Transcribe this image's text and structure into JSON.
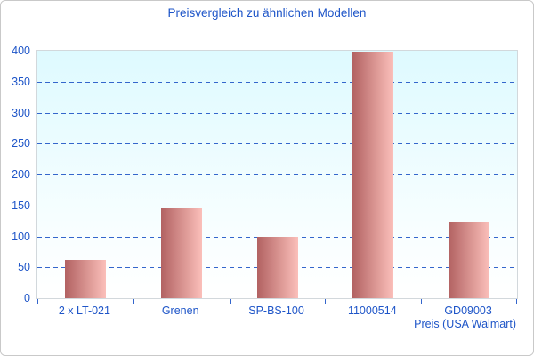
{
  "title": "Preisvergleich zu ähnlichen Modellen",
  "colors": {
    "text_blue": "#1e55c8",
    "grid_blue": "#3466cc",
    "bar_dark": "#b26262",
    "bar_light": "#fbbfba",
    "plot_bg_top": "#defaff",
    "plot_border": "#d2d8dc",
    "outer_border": "#c9c9c9"
  },
  "chart_data": {
    "type": "bar",
    "title": "Preisvergleich zu ähnlichen Modellen",
    "categories": [
      "2 x LT-021",
      "Grenen",
      "SP-BS-100",
      "11000514",
      "GD09003"
    ],
    "values": [
      62,
      146,
      100,
      399,
      124
    ],
    "xlabel": "Preis (USA Walmart)",
    "ylabel": "",
    "ylim": [
      0,
      400
    ],
    "yticks": [
      0,
      50,
      100,
      150,
      200,
      250,
      300,
      350,
      400
    ],
    "grid": "horizontal-dashed",
    "legend": "none",
    "bar_gradient": "dark-red to light-pink, left to right",
    "plot_background": "light cyan fading to white"
  }
}
